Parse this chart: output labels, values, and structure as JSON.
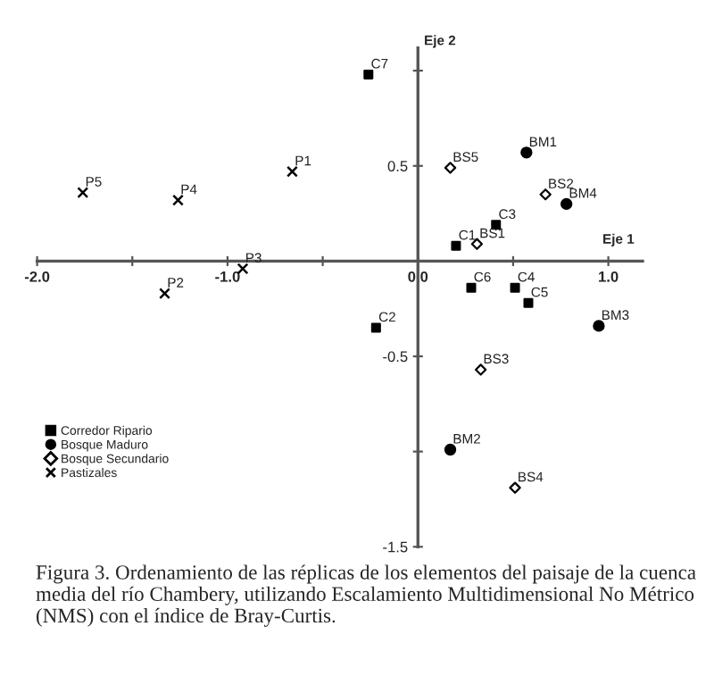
{
  "chart_data": {
    "type": "scatter",
    "xlabel": "Eje 1",
    "ylabel": "Eje 2",
    "xlim": [
      -2.0,
      1.18
    ],
    "ylim": [
      -1.5,
      1.12
    ],
    "xticks": [
      {
        "value": -2,
        "label": "-2.0"
      },
      {
        "value": -1.5,
        "label": null
      },
      {
        "value": -1,
        "label": "-1.0"
      },
      {
        "value": -0.5,
        "label": null
      },
      {
        "value": 0,
        "label": "0.0"
      },
      {
        "value": 0.5,
        "label": null
      },
      {
        "value": 1,
        "label": "1.0"
      }
    ],
    "yticks": [
      -1.5,
      {
        "value": -1.0,
        "label": null
      },
      -0.5,
      0.5,
      {
        "value": 1.0,
        "label": null
      }
    ],
    "grid": false,
    "legend": "bottom left",
    "series": [
      {
        "name": "Corredor Ripario",
        "color": "#000000",
        "marker": "square",
        "x": [
          0.2,
          -0.22,
          0.41,
          0.51,
          0.58,
          0.28,
          -0.26
        ],
        "values": [
          0.08,
          -0.35,
          0.19,
          -0.14,
          -0.22,
          -0.14,
          0.98
        ]
      },
      {
        "name": "Bosque Maduro",
        "color": "#000000",
        "marker": "circle",
        "x": [
          0.57,
          0.17,
          0.95,
          0.78
        ],
        "values": [
          0.57,
          -0.99,
          -0.34,
          0.3
        ]
      },
      {
        "name": "Bosque Secundario",
        "color": "#000000",
        "marker": "diamond",
        "x": [
          0.31,
          0.67,
          0.33,
          0.51,
          0.17
        ],
        "values": [
          0.09,
          0.35,
          -0.57,
          -1.19,
          0.49
        ]
      },
      {
        "name": "Pastizales",
        "color": "#000000",
        "marker": "cross",
        "x": [
          -0.66,
          -1.33,
          -0.92,
          -1.26,
          -1.76
        ],
        "values": [
          0.47,
          -0.17,
          -0.04,
          0.32,
          0.36
        ]
      }
    ],
    "annotations": [
      {
        "text": "C1",
        "x": 0.2,
        "y": 0.08
      },
      {
        "text": "C2",
        "x": -0.22,
        "y": -0.35
      },
      {
        "text": "C3",
        "x": 0.41,
        "y": 0.19
      },
      {
        "text": "C4",
        "x": 0.51,
        "y": -0.14
      },
      {
        "text": "C5",
        "x": 0.58,
        "y": -0.22
      },
      {
        "text": "C6",
        "x": 0.28,
        "y": -0.14
      },
      {
        "text": "C7",
        "x": -0.26,
        "y": 0.98
      },
      {
        "text": "BM1",
        "x": 0.57,
        "y": 0.57
      },
      {
        "text": "BM2",
        "x": 0.17,
        "y": -0.99
      },
      {
        "text": "BM3",
        "x": 0.95,
        "y": -0.34
      },
      {
        "text": "BM4",
        "x": 0.78,
        "y": 0.3
      },
      {
        "text": "BS1",
        "x": 0.31,
        "y": 0.09
      },
      {
        "text": "BS2",
        "x": 0.67,
        "y": 0.35
      },
      {
        "text": "BS3",
        "x": 0.33,
        "y": -0.57
      },
      {
        "text": "BS4",
        "x": 0.51,
        "y": -1.19
      },
      {
        "text": "BS5",
        "x": 0.17,
        "y": 0.49
      },
      {
        "text": "P1",
        "x": -0.66,
        "y": 0.47
      },
      {
        "text": "P2",
        "x": -1.33,
        "y": -0.17
      },
      {
        "text": "P3",
        "x": -0.92,
        "y": -0.04
      },
      {
        "text": "P4",
        "x": -1.26,
        "y": 0.32
      },
      {
        "text": "P5",
        "x": -1.76,
        "y": 0.36
      },
      "Figura 3. Ordenamiento de las réplicas de los elementos del paisaje de la cuenca media del río Chambery, utilizando Escalamiento Multidimensional No Métrico (NMS) con el índice de Bray-Curtis."
    ]
  }
}
